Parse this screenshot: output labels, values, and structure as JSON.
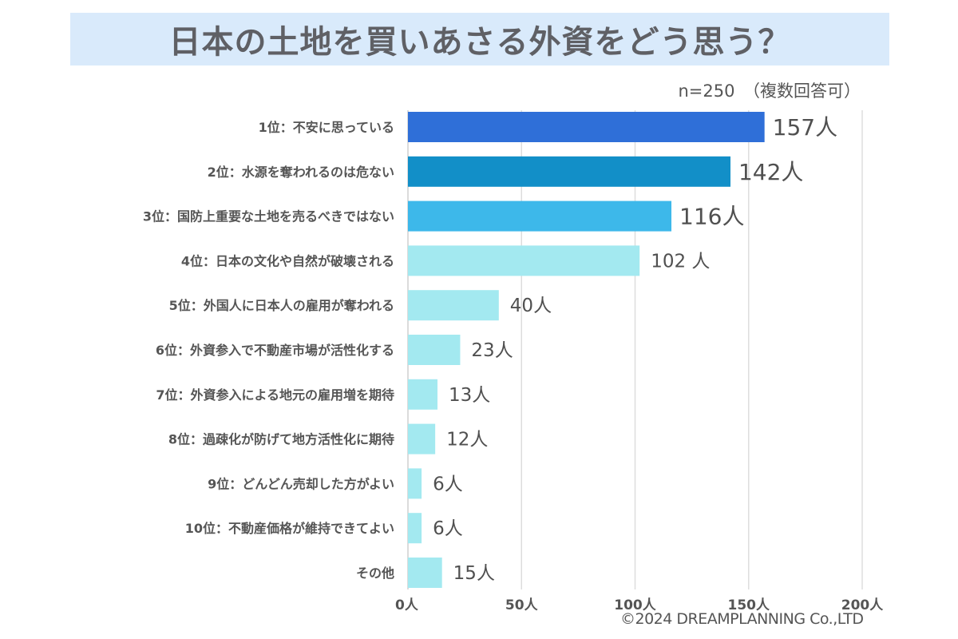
{
  "header": {
    "title": "日本の土地を買いあさる外資をどう思う？",
    "sample_note": "n=250　（複数回答可）"
  },
  "footer": {
    "copyright": "©2024 DREAMPLANNING Co.,LTD"
  },
  "chart_data": {
    "type": "bar",
    "orientation": "horizontal",
    "title": "日本の土地を買いあさる外資をどう思う？",
    "subtitle": "n=250 （複数回答可）",
    "xlabel": "",
    "ylabel": "",
    "xlim": [
      0,
      200
    ],
    "grid": true,
    "unit": "人",
    "categories": [
      "1位：不安に思っている",
      "2位：水源を奪われるのは危ない",
      "3位：国防上重要な土地を売るべきではない",
      "4位：日本の文化や自然が破壊される",
      "5位：外国人に日本人の雇用が奪われる",
      "6位：外資参入で不動産市場が活性化する",
      "7位：外資参入による地元の雇用増を期待",
      "8位：過疎化が防げて地方活性化に期待",
      "9位：どんどん売却した方がよい",
      "10位：不動産価格が維持できてよい",
      "その他"
    ],
    "values": [
      157,
      142,
      116,
      102,
      40,
      23,
      13,
      12,
      6,
      6,
      15
    ],
    "value_labels": [
      "157人",
      "142人",
      "116人",
      "102 人",
      "40人",
      "23人",
      "13人",
      "12人",
      "6人",
      "6人",
      "15人"
    ],
    "bar_colors": [
      "#2f6fd8",
      "#128fc8",
      "#3db8ea",
      "#a3e9f0",
      "#a3e9f0",
      "#a3e9f0",
      "#a3e9f0",
      "#a3e9f0",
      "#a3e9f0",
      "#a3e9f0",
      "#a3e9f0"
    ],
    "x_ticks": [
      0,
      50,
      100,
      150,
      200
    ],
    "x_tick_labels": [
      "0人",
      "50人",
      "100人",
      "150人",
      "200人"
    ]
  }
}
